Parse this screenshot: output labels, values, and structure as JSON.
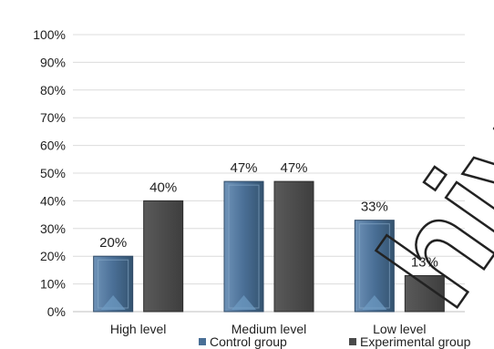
{
  "chart_data": {
    "type": "bar",
    "categories": [
      "High level",
      "Medium level",
      "Low level"
    ],
    "series": [
      {
        "name": "Control group",
        "values": [
          20,
          47,
          33
        ],
        "labels": [
          "20%",
          "47%",
          "33%"
        ],
        "color": "#4a6f96"
      },
      {
        "name": "Experimental group",
        "values": [
          40,
          47,
          13
        ],
        "labels": [
          "40%",
          "47%",
          "13%"
        ],
        "color": "#4a4a4a"
      }
    ],
    "y_ticks": [
      "0%",
      "10%",
      "20%",
      "30%",
      "40%",
      "50%",
      "60%",
      "70%",
      "80%",
      "90%",
      "100%"
    ],
    "ylim": [
      0,
      100
    ],
    "grid": true,
    "legend_position": "bottom",
    "watermark": "hive"
  }
}
